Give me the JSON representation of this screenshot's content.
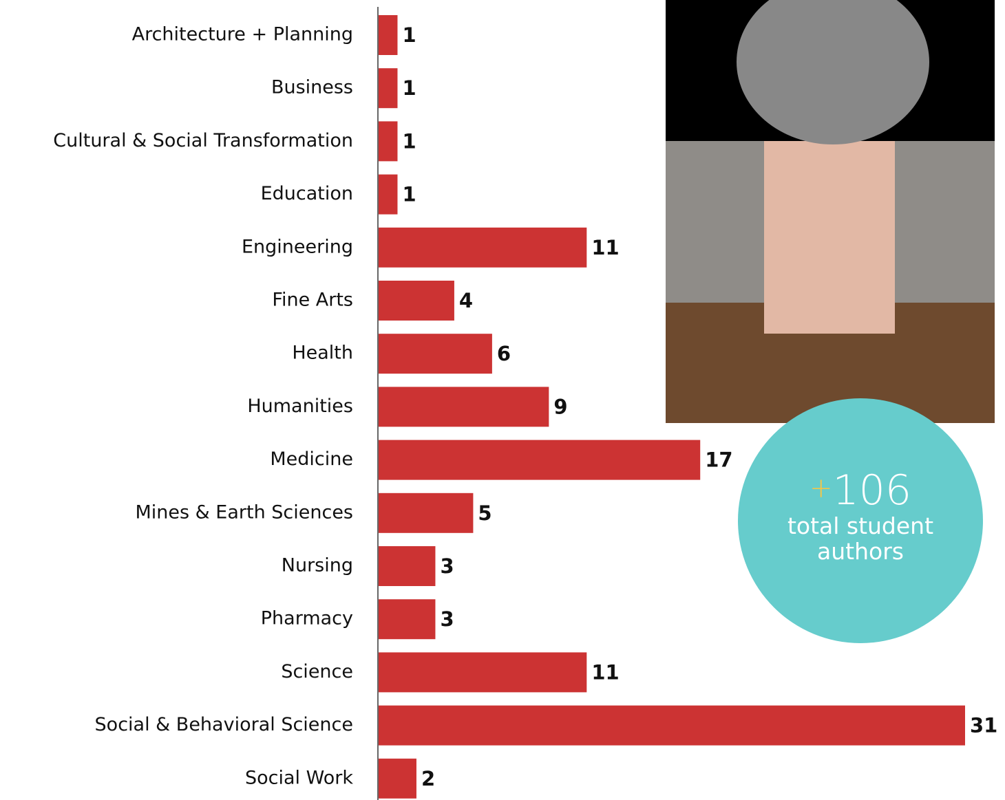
{
  "chart_data": {
    "type": "bar",
    "orientation": "horizontal",
    "categories": [
      "Architecture + Planning",
      "Business",
      "Cultural & Social Transformation",
      "Education",
      "Engineering",
      "Fine Arts",
      "Health",
      "Humanities",
      "Medicine",
      "Mines & Earth Sciences",
      "Nursing",
      "Pharmacy",
      "Science",
      "Social & Behavioral Science",
      "Social Work"
    ],
    "values": [
      1,
      1,
      1,
      1,
      11,
      4,
      6,
      9,
      17,
      5,
      3,
      3,
      11,
      31,
      2
    ],
    "color": "#cc3333",
    "xlim": [
      0,
      31
    ],
    "annotation": {
      "sign": "+",
      "number": "106",
      "text": "total student authors"
    }
  }
}
